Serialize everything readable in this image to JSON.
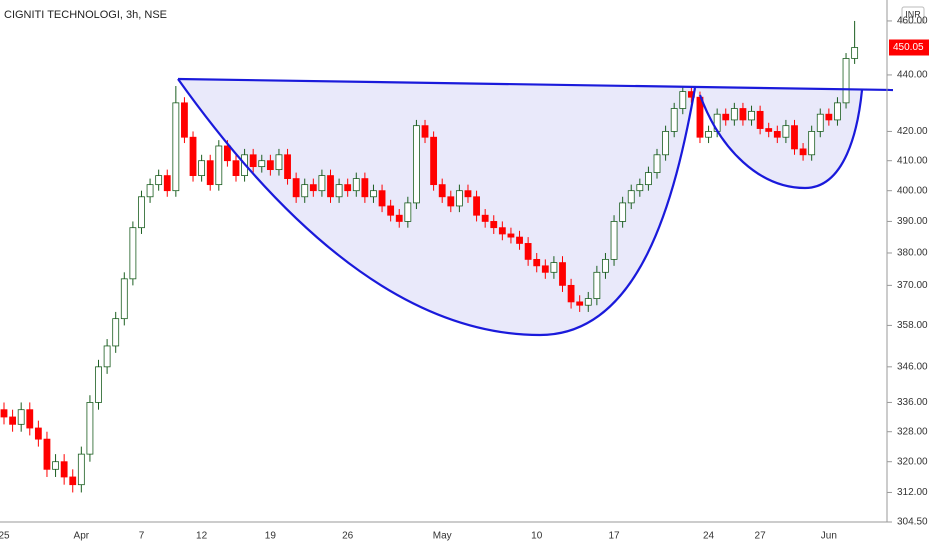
{
  "chart_data": {
    "type": "candlestick",
    "title": "CIGNITI TECHNOLOGI, 3h, NSE",
    "currency": "INR",
    "log_scale": true,
    "up_color": "#ffffff",
    "up_border": "#1b5e20",
    "down_color": "#ff0000",
    "ylim": [
      304.5,
      468
    ],
    "yticks": [
      {
        "value": 304.5,
        "label": "304.50"
      },
      {
        "value": 312,
        "label": "312.00"
      },
      {
        "value": 320,
        "label": "320.00"
      },
      {
        "value": 328,
        "label": "328.00"
      },
      {
        "value": 336,
        "label": "336.00"
      },
      {
        "value": 346,
        "label": "346.00"
      },
      {
        "value": 358,
        "label": "358.00"
      },
      {
        "value": 370,
        "label": "370.00"
      },
      {
        "value": 380,
        "label": "380.00"
      },
      {
        "value": 390,
        "label": "390.00"
      },
      {
        "value": 400,
        "label": "400.00"
      },
      {
        "value": 410,
        "label": "410.00"
      },
      {
        "value": 420,
        "label": "420.00"
      },
      {
        "value": 440,
        "label": "440.00"
      },
      {
        "value": 460,
        "label": "460.00"
      }
    ],
    "categories": [
      "25",
      null,
      null,
      null,
      null,
      null,
      null,
      null,
      null,
      "Apr",
      null,
      null,
      null,
      null,
      null,
      null,
      "7",
      null,
      null,
      null,
      null,
      null,
      null,
      "12",
      null,
      null,
      null,
      null,
      null,
      null,
      null,
      "19",
      null,
      null,
      null,
      null,
      null,
      null,
      null,
      null,
      "26",
      null,
      null,
      null,
      null,
      null,
      null,
      null,
      null,
      null,
      null,
      "May",
      null,
      null,
      null,
      null,
      null,
      null,
      null,
      null,
      null,
      null,
      "10",
      null,
      null,
      null,
      null,
      null,
      null,
      null,
      null,
      "17",
      null,
      null,
      null,
      null,
      null,
      null,
      null,
      null,
      null,
      null,
      "24",
      null,
      null,
      null,
      null,
      null,
      "27",
      null,
      null,
      null,
      null,
      null,
      null,
      null,
      "Jun",
      null,
      null,
      null
    ],
    "open": [
      334,
      332,
      330,
      334,
      329,
      326,
      318,
      320,
      316,
      314,
      322,
      336,
      346,
      352,
      360,
      372,
      388,
      398,
      402,
      405,
      400,
      430,
      418,
      405,
      410,
      402,
      415,
      410,
      405,
      412,
      408,
      410,
      407,
      412,
      404,
      398,
      402,
      400,
      405,
      398,
      402,
      400,
      404,
      398,
      400,
      395,
      392,
      390,
      396,
      422,
      418,
      402,
      398,
      395,
      400,
      398,
      392,
      390,
      388,
      386,
      385,
      383,
      378,
      376,
      374,
      377,
      370,
      365,
      364,
      366,
      374,
      378,
      390,
      396,
      400,
      402,
      406,
      412,
      420,
      428,
      434,
      432,
      418,
      420,
      426,
      424,
      428,
      424,
      427,
      421,
      420,
      418,
      422,
      414,
      412,
      420,
      426,
      424,
      430,
      446
    ],
    "high": [
      336,
      334,
      336,
      336,
      331,
      328,
      322,
      322,
      318,
      324,
      338,
      348,
      354,
      362,
      374,
      390,
      400,
      404,
      407,
      407,
      436,
      432,
      420,
      412,
      412,
      417,
      417,
      412,
      414,
      414,
      412,
      412,
      414,
      414,
      406,
      404,
      404,
      407,
      407,
      404,
      404,
      406,
      406,
      402,
      402,
      397,
      394,
      398,
      424,
      424,
      420,
      404,
      400,
      402,
      402,
      400,
      394,
      392,
      390,
      388,
      387,
      385,
      380,
      378,
      379,
      379,
      372,
      367,
      368,
      376,
      380,
      392,
      398,
      402,
      404,
      408,
      414,
      422,
      430,
      436,
      436,
      434,
      422,
      428,
      428,
      430,
      430,
      429,
      429,
      423,
      422,
      424,
      424,
      416,
      422,
      428,
      428,
      432,
      448,
      460
    ],
    "low": [
      330,
      328,
      328,
      327,
      324,
      316,
      316,
      314,
      312,
      312,
      320,
      334,
      344,
      350,
      358,
      370,
      386,
      396,
      400,
      398,
      398,
      416,
      403,
      403,
      400,
      400,
      408,
      403,
      403,
      406,
      406,
      405,
      405,
      402,
      396,
      396,
      398,
      398,
      396,
      396,
      398,
      398,
      396,
      396,
      393,
      390,
      388,
      388,
      394,
      416,
      400,
      396,
      393,
      393,
      396,
      390,
      388,
      386,
      384,
      383,
      381,
      376,
      374,
      372,
      372,
      368,
      363,
      362,
      362,
      364,
      372,
      376,
      388,
      394,
      398,
      400,
      404,
      410,
      418,
      426,
      430,
      416,
      416,
      418,
      422,
      422,
      422,
      422,
      419,
      418,
      416,
      416,
      412,
      410,
      410,
      418,
      422,
      422,
      428,
      444
    ],
    "close": [
      332,
      330,
      334,
      329,
      326,
      318,
      320,
      316,
      314,
      322,
      336,
      346,
      352,
      360,
      372,
      388,
      398,
      402,
      405,
      400,
      430,
      418,
      405,
      410,
      402,
      415,
      410,
      405,
      412,
      408,
      410,
      407,
      412,
      404,
      398,
      402,
      400,
      405,
      398,
      402,
      400,
      404,
      398,
      400,
      395,
      392,
      390,
      396,
      422,
      418,
      402,
      398,
      395,
      400,
      398,
      392,
      390,
      388,
      386,
      385,
      383,
      378,
      376,
      374,
      377,
      370,
      365,
      364,
      366,
      374,
      378,
      390,
      396,
      400,
      402,
      406,
      412,
      420,
      428,
      434,
      432,
      418,
      420,
      426,
      424,
      428,
      424,
      427,
      421,
      420,
      418,
      422,
      414,
      412,
      420,
      426,
      424,
      430,
      446,
      450.05
    ]
  }
}
